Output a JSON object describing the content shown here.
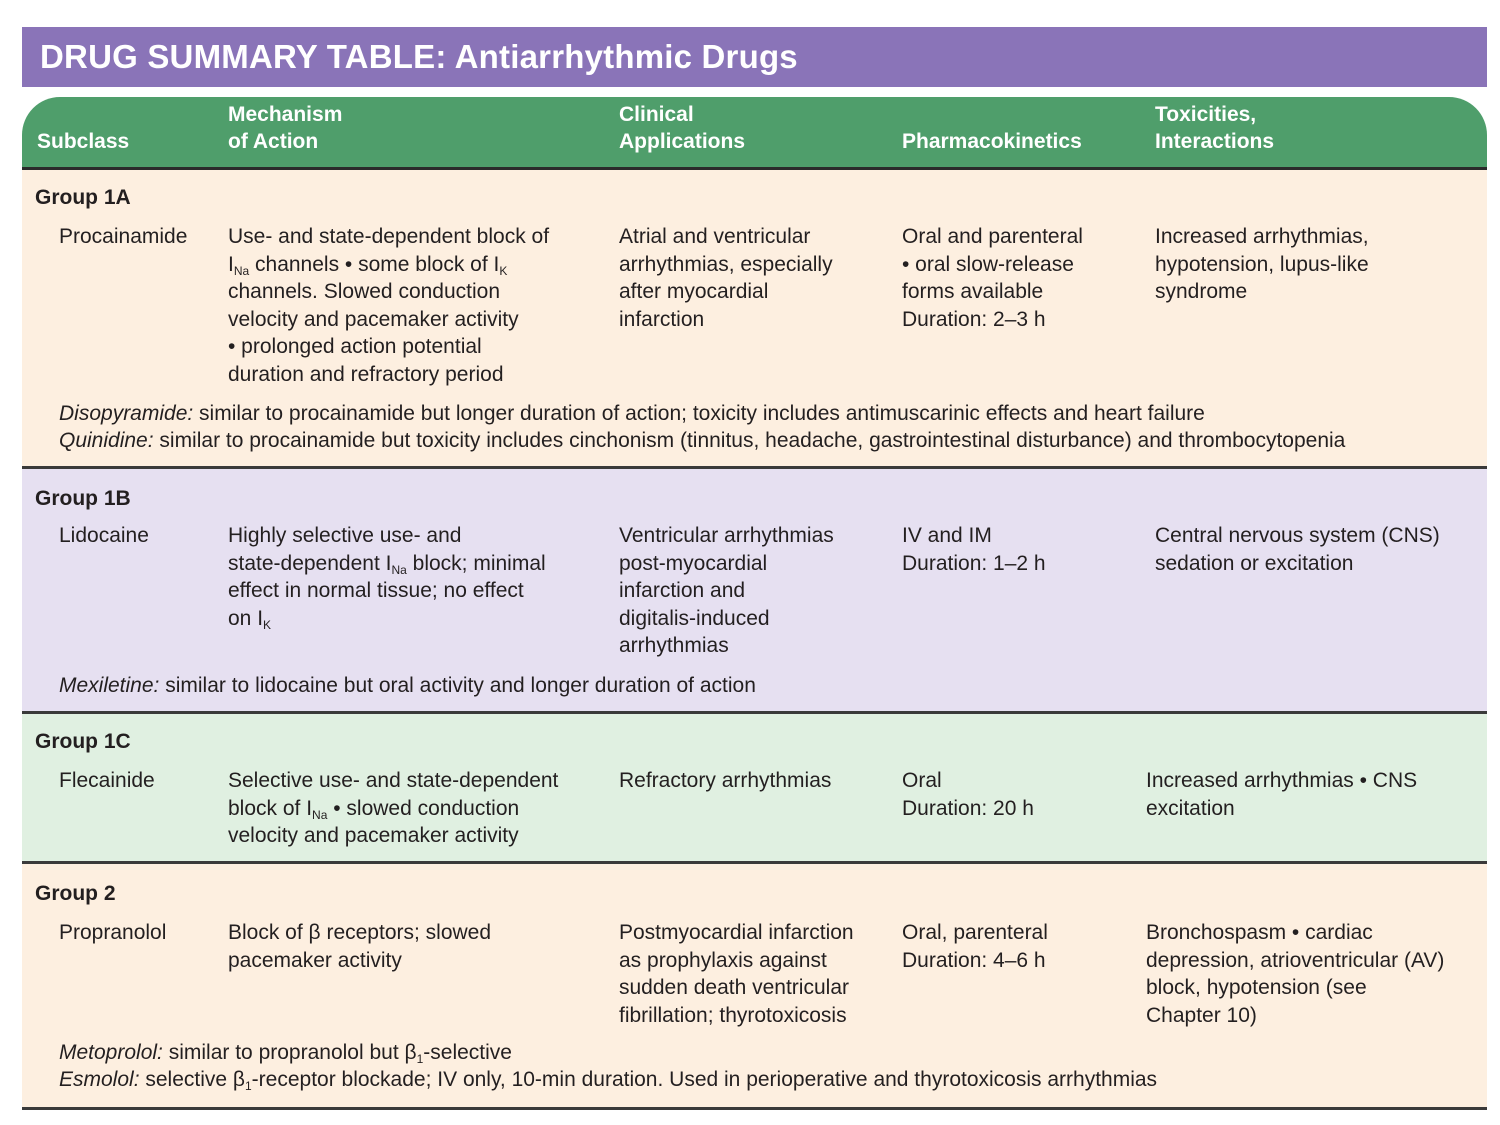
{
  "title": "DRUG SUMMARY TABLE: Antiarrhythmic Drugs",
  "headers": {
    "subclass": "Subclass",
    "mechanism_l1": "Mechanism",
    "mechanism_l2": "of Action",
    "clinical_l1": "Clinical",
    "clinical_l2": "Applications",
    "pharmacokinetics": "Pharmacokinetics",
    "toxicities_l1": "Toxicities,",
    "toxicities_l2": "Interactions"
  },
  "groups": [
    {
      "name": "Group 1A",
      "drug": "Procainamide",
      "mechanism": [
        {
          "text": "Use- and state-dependent block of"
        },
        {
          "pre": "I",
          "sub": "Na",
          "post": " channels • some block of I",
          "sub2": "K"
        },
        {
          "text": "channels. Slowed conduction"
        },
        {
          "text": "velocity and pacemaker activity"
        },
        {
          "text": "• prolonged action potential"
        },
        {
          "text": "duration and refractory period"
        }
      ],
      "clinical": [
        "Atrial and ventricular",
        "arrhythmias, especially",
        "after myocardial",
        "infarction"
      ],
      "pharmacokinetics": [
        "Oral and parenteral",
        "• oral slow-release",
        "forms available",
        "Duration: 2–3 h"
      ],
      "toxicities": [
        "Increased arrhythmias,",
        "hypotension, lupus-like",
        "syndrome"
      ],
      "notes": [
        {
          "drug": "Disopyramide:",
          "text": " similar to procainamide but longer duration of action; toxicity includes antimuscarinic effects and heart failure"
        },
        {
          "drug": "Quinidine:",
          "text": " similar to procainamide but toxicity includes cinchonism (tinnitus, headache, gastrointestinal disturbance) and thrombocytopenia"
        }
      ]
    },
    {
      "name": "Group 1B",
      "drug": "Lidocaine",
      "mechanism": [
        {
          "text": "Highly selective use-  and"
        },
        {
          "pre": "state-dependent I",
          "sub": "Na",
          "post": " block; minimal"
        },
        {
          "text": "effect in normal tissue; no effect"
        },
        {
          "pre": "on I",
          "sub": "K",
          "post": ""
        }
      ],
      "clinical": [
        "Ventricular arrhythmias",
        "post-myocardial",
        "infarction and",
        "digitalis-induced",
        "arrhythmias"
      ],
      "pharmacokinetics": [
        "IV and IM",
        "Duration: 1–2 h"
      ],
      "toxicities": [
        "Central nervous system (CNS)",
        "sedation or excitation"
      ],
      "notes": [
        {
          "drug": "Mexiletine:",
          "text": " similar to lidocaine but oral activity and longer duration of action"
        }
      ]
    },
    {
      "name": "Group 1C",
      "drug": "Flecainide",
      "mechanism": [
        {
          "text": "Selective use-  and state-dependent"
        },
        {
          "pre": "block of I",
          "sub": "Na",
          "post": " • slowed conduction"
        },
        {
          "text": "velocity and pacemaker activity"
        }
      ],
      "clinical": [
        "Refractory arrhythmias"
      ],
      "pharmacokinetics": [
        "Oral",
        "Duration: 20 h"
      ],
      "toxicities": [
        "Increased arrhythmias • CNS",
        "excitation"
      ],
      "notes": []
    },
    {
      "name": "Group 2",
      "drug": "Propranolol",
      "mechanism": [
        {
          "text": "Block of β receptors; slowed"
        },
        {
          "text": "pacemaker activity"
        }
      ],
      "clinical": [
        "Postmyocardial infarction",
        "as prophylaxis against",
        "sudden death ventricular",
        "fibrillation; thyrotoxicosis"
      ],
      "pharmacokinetics": [
        "Oral, parenteral",
        "Duration: 4–6 h"
      ],
      "toxicities": [
        "Bronchospasm • cardiac",
        "depression, atrioventricular (AV)",
        "block, hypotension (see",
        "Chapter 10)"
      ],
      "notes": [
        {
          "drug": "Metoprolol:",
          "text": " similar to propranolol but β",
          "sub": "1",
          "text2": "-selective"
        },
        {
          "drug": "Esmolol:",
          "text": " selective β",
          "sub": "1",
          "text2": "-receptor blockade; IV only, 10-min duration. Used in perioperative and thyrotoxicosis arrhythmias"
        }
      ]
    }
  ]
}
